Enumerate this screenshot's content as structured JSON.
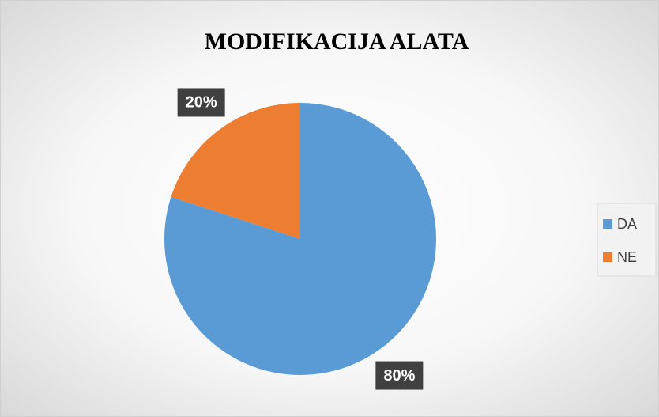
{
  "chart_data": {
    "type": "pie",
    "title": "MODIFIKACIJA ALATA",
    "categories": [
      "DA",
      "NE"
    ],
    "values": [
      80,
      20
    ],
    "value_labels": [
      "80%",
      "20%"
    ],
    "colors": [
      "#5b9bd5",
      "#ed7d31"
    ],
    "legend": "right"
  }
}
